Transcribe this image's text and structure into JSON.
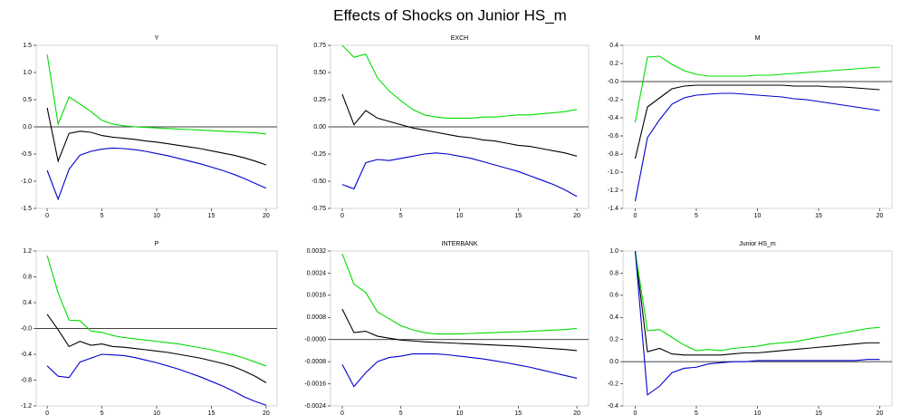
{
  "title": "Effects of Shocks on Junior HS_m",
  "chart_data": [
    {
      "type": "line",
      "title": "Y",
      "x": [
        0,
        1,
        2,
        3,
        4,
        5,
        6,
        7,
        8,
        9,
        10,
        11,
        12,
        13,
        14,
        15,
        16,
        17,
        18,
        19,
        20
      ],
      "xlim": [
        -1,
        21
      ],
      "xticks": [
        0,
        5,
        10,
        15,
        20
      ],
      "ylim": [
        -1.5,
        1.5
      ],
      "yticks": [
        -1.5,
        {
          "value": -1.0,
          "label": "-1.0"
        },
        -0.5,
        {
          "value": 0,
          "label": "0.0"
        },
        0.5,
        {
          "value": 1.0,
          "label": "1.0"
        },
        1.5
      ],
      "series": [
        {
          "color": "#000000",
          "values": [
            0.35,
            -0.63,
            -0.12,
            -0.08,
            -0.1,
            -0.16,
            -0.19,
            -0.21,
            -0.23,
            -0.26,
            -0.28,
            -0.31,
            -0.34,
            -0.37,
            -0.4,
            -0.44,
            -0.48,
            -0.52,
            -0.57,
            -0.63,
            -0.7
          ]
        },
        {
          "color": "#00dd00",
          "values": [
            1.33,
            0.05,
            0.55,
            0.42,
            0.28,
            0.12,
            0.05,
            0.02,
            0.0,
            -0.01,
            -0.02,
            -0.03,
            -0.04,
            -0.05,
            -0.06,
            -0.07,
            -0.08,
            -0.09,
            -0.1,
            -0.11,
            -0.13
          ]
        },
        {
          "color": "#0000cc",
          "values": [
            -0.8,
            -1.33,
            -0.78,
            -0.52,
            -0.45,
            -0.41,
            -0.39,
            -0.4,
            -0.42,
            -0.45,
            -0.49,
            -0.53,
            -0.58,
            -0.63,
            -0.68,
            -0.74,
            -0.8,
            -0.87,
            -0.95,
            -1.04,
            -1.13
          ]
        }
      ]
    },
    {
      "type": "line",
      "title": "EXCH",
      "x": [
        0,
        1,
        2,
        3,
        4,
        5,
        6,
        7,
        8,
        9,
        10,
        11,
        12,
        13,
        14,
        15,
        16,
        17,
        18,
        19,
        20
      ],
      "xlim": [
        -1,
        21
      ],
      "xticks": [
        0,
        5,
        10,
        15,
        20
      ],
      "ylim": [
        -0.75,
        0.75
      ],
      "yticks": [
        -0.75,
        {
          "value": -0.5,
          "label": "-0.50"
        },
        -0.25,
        {
          "value": 0,
          "label": "0.00"
        },
        0.25,
        {
          "value": 0.5,
          "label": "0.50"
        },
        0.75
      ],
      "series": [
        {
          "color": "#000000",
          "values": [
            0.3,
            0.02,
            0.15,
            0.08,
            0.05,
            0.02,
            -0.01,
            -0.03,
            -0.05,
            -0.07,
            -0.09,
            -0.1,
            -0.12,
            -0.13,
            -0.15,
            -0.17,
            -0.18,
            -0.2,
            -0.22,
            -0.24,
            -0.27
          ]
        },
        {
          "color": "#00dd00",
          "values": [
            0.75,
            0.64,
            0.67,
            0.45,
            0.33,
            0.24,
            0.16,
            0.11,
            0.09,
            0.08,
            0.08,
            0.08,
            0.09,
            0.09,
            0.1,
            0.11,
            0.11,
            0.12,
            0.13,
            0.14,
            0.16
          ]
        },
        {
          "color": "#0000cc",
          "values": [
            -0.53,
            -0.57,
            -0.33,
            -0.3,
            -0.31,
            -0.29,
            -0.27,
            -0.25,
            -0.24,
            -0.25,
            -0.27,
            -0.29,
            -0.32,
            -0.35,
            -0.38,
            -0.41,
            -0.45,
            -0.49,
            -0.53,
            -0.58,
            -0.64
          ]
        }
      ]
    },
    {
      "type": "line",
      "title": "M",
      "x": [
        0,
        1,
        2,
        3,
        4,
        5,
        6,
        7,
        8,
        9,
        10,
        11,
        12,
        13,
        14,
        15,
        16,
        17,
        18,
        19,
        20
      ],
      "xlim": [
        -1,
        21
      ],
      "xticks": [
        0,
        5,
        10,
        15,
        20
      ],
      "ylim": [
        -1.4,
        0.4
      ],
      "yticks": [
        -1.4,
        -1.2,
        {
          "value": -1.0,
          "label": "-1.0"
        },
        -0.8,
        -0.6,
        -0.4,
        -0.2,
        {
          "value": 0,
          "label": "-0.0"
        },
        0.2,
        0.4
      ],
      "series": [
        {
          "color": "#000000",
          "values": [
            -0.85,
            -0.28,
            -0.18,
            -0.08,
            -0.05,
            -0.04,
            -0.04,
            -0.04,
            -0.04,
            -0.04,
            -0.04,
            -0.04,
            -0.04,
            -0.05,
            -0.05,
            -0.05,
            -0.06,
            -0.06,
            -0.07,
            -0.08,
            -0.09
          ]
        },
        {
          "color": "#00dd00",
          "values": [
            -0.45,
            0.27,
            0.28,
            0.19,
            0.12,
            0.08,
            0.06,
            0.06,
            0.06,
            0.06,
            0.07,
            0.07,
            0.08,
            0.09,
            0.1,
            0.11,
            0.12,
            0.13,
            0.14,
            0.15,
            0.16
          ]
        },
        {
          "color": "#0000cc",
          "values": [
            -1.32,
            -0.62,
            -0.42,
            -0.25,
            -0.18,
            -0.15,
            -0.14,
            -0.13,
            -0.13,
            -0.14,
            -0.15,
            -0.16,
            -0.17,
            -0.19,
            -0.2,
            -0.22,
            -0.24,
            -0.26,
            -0.28,
            -0.3,
            -0.32
          ]
        }
      ]
    },
    {
      "type": "line",
      "title": "P",
      "x": [
        0,
        1,
        2,
        3,
        4,
        5,
        6,
        7,
        8,
        9,
        10,
        11,
        12,
        13,
        14,
        15,
        16,
        17,
        18,
        19,
        20
      ],
      "xlim": [
        -1,
        21
      ],
      "xticks": [
        0,
        5,
        10,
        15,
        20
      ],
      "ylim": [
        -1.2,
        1.2
      ],
      "yticks": [
        -1.2,
        -0.8,
        -0.4,
        {
          "value": 0,
          "label": "-0.0"
        },
        0.4,
        0.8,
        1.2
      ],
      "series": [
        {
          "color": "#000000",
          "values": [
            0.22,
            -0.02,
            -0.28,
            -0.2,
            -0.26,
            -0.24,
            -0.28,
            -0.29,
            -0.31,
            -0.33,
            -0.35,
            -0.37,
            -0.4,
            -0.43,
            -0.46,
            -0.5,
            -0.54,
            -0.59,
            -0.66,
            -0.74,
            -0.84
          ]
        },
        {
          "color": "#00dd00",
          "values": [
            1.13,
            0.55,
            0.13,
            0.12,
            -0.04,
            -0.06,
            -0.11,
            -0.14,
            -0.16,
            -0.18,
            -0.2,
            -0.22,
            -0.24,
            -0.27,
            -0.3,
            -0.33,
            -0.37,
            -0.41,
            -0.46,
            -0.52,
            -0.58
          ]
        },
        {
          "color": "#0000cc",
          "values": [
            -0.58,
            -0.74,
            -0.76,
            -0.52,
            -0.46,
            -0.4,
            -0.41,
            -0.42,
            -0.45,
            -0.49,
            -0.53,
            -0.58,
            -0.63,
            -0.69,
            -0.75,
            -0.82,
            -0.89,
            -0.97,
            -1.06,
            -1.13,
            -1.19
          ]
        }
      ]
    },
    {
      "type": "line",
      "title": "INTERBANK",
      "x": [
        0,
        1,
        2,
        3,
        4,
        5,
        6,
        7,
        8,
        9,
        10,
        11,
        12,
        13,
        14,
        15,
        16,
        17,
        18,
        19,
        20
      ],
      "xlim": [
        -1,
        21
      ],
      "xticks": [
        0,
        5,
        10,
        15,
        20
      ],
      "ylim": [
        -0.0024,
        0.0032
      ],
      "yticks": [
        -0.0024,
        -0.0016,
        -0.0008,
        {
          "value": 0,
          "label": "-0.0000"
        },
        0.0008,
        0.0016,
        0.0024,
        0.0032
      ],
      "series": [
        {
          "color": "#000000",
          "values": [
            0.0011,
            0.00025,
            0.0003,
            0.00012,
            5e-05,
            -2e-05,
            -5e-05,
            -8e-05,
            -0.0001,
            -0.00012,
            -0.00014,
            -0.00016,
            -0.00018,
            -0.0002,
            -0.00022,
            -0.00024,
            -0.00027,
            -0.0003,
            -0.00033,
            -0.00036,
            -0.0004
          ]
        },
        {
          "color": "#00dd00",
          "values": [
            0.0031,
            0.002,
            0.0017,
            0.001,
            0.00075,
            0.0005,
            0.00035,
            0.00025,
            0.0002,
            0.0002,
            0.0002,
            0.00022,
            0.00024,
            0.00025,
            0.00027,
            0.00028,
            0.0003,
            0.00032,
            0.00034,
            0.00036,
            0.0004
          ]
        },
        {
          "color": "#0000cc",
          "values": [
            -0.0009,
            -0.0017,
            -0.0012,
            -0.0008,
            -0.00065,
            -0.0006,
            -0.00052,
            -0.00052,
            -0.00052,
            -0.00055,
            -0.0006,
            -0.00065,
            -0.0007,
            -0.00077,
            -0.00084,
            -0.00092,
            -0.001,
            -0.0011,
            -0.0012,
            -0.0013,
            -0.0014
          ]
        }
      ]
    },
    {
      "type": "line",
      "title": "Junior HS_m",
      "x": [
        0,
        1,
        2,
        3,
        4,
        5,
        6,
        7,
        8,
        9,
        10,
        11,
        12,
        13,
        14,
        15,
        16,
        17,
        18,
        19,
        20
      ],
      "xlim": [
        -1,
        21
      ],
      "xticks": [
        0,
        5,
        10,
        15,
        20
      ],
      "ylim": [
        -0.4,
        1.0
      ],
      "yticks": [
        -0.4,
        -0.2,
        {
          "value": 0,
          "label": "0.0"
        },
        0.2,
        0.4,
        0.6,
        0.8,
        {
          "value": 1.0,
          "label": "1.0"
        }
      ],
      "series": [
        {
          "color": "#000000",
          "values": [
            1.0,
            0.09,
            0.12,
            0.07,
            0.06,
            0.06,
            0.06,
            0.06,
            0.07,
            0.08,
            0.08,
            0.09,
            0.1,
            0.11,
            0.12,
            0.13,
            0.14,
            0.15,
            0.16,
            0.17,
            0.17
          ]
        },
        {
          "color": "#00dd00",
          "values": [
            1.0,
            0.28,
            0.29,
            0.22,
            0.15,
            0.1,
            0.11,
            0.1,
            0.12,
            0.13,
            0.14,
            0.16,
            0.17,
            0.18,
            0.2,
            0.22,
            0.24,
            0.26,
            0.28,
            0.3,
            0.31
          ]
        },
        {
          "color": "#0000cc",
          "values": [
            1.0,
            -0.3,
            -0.22,
            -0.1,
            -0.06,
            -0.05,
            -0.02,
            -0.01,
            0.0,
            0.0,
            0.01,
            0.01,
            0.01,
            0.01,
            0.01,
            0.01,
            0.01,
            0.01,
            0.01,
            0.02,
            0.02
          ]
        }
      ]
    }
  ]
}
